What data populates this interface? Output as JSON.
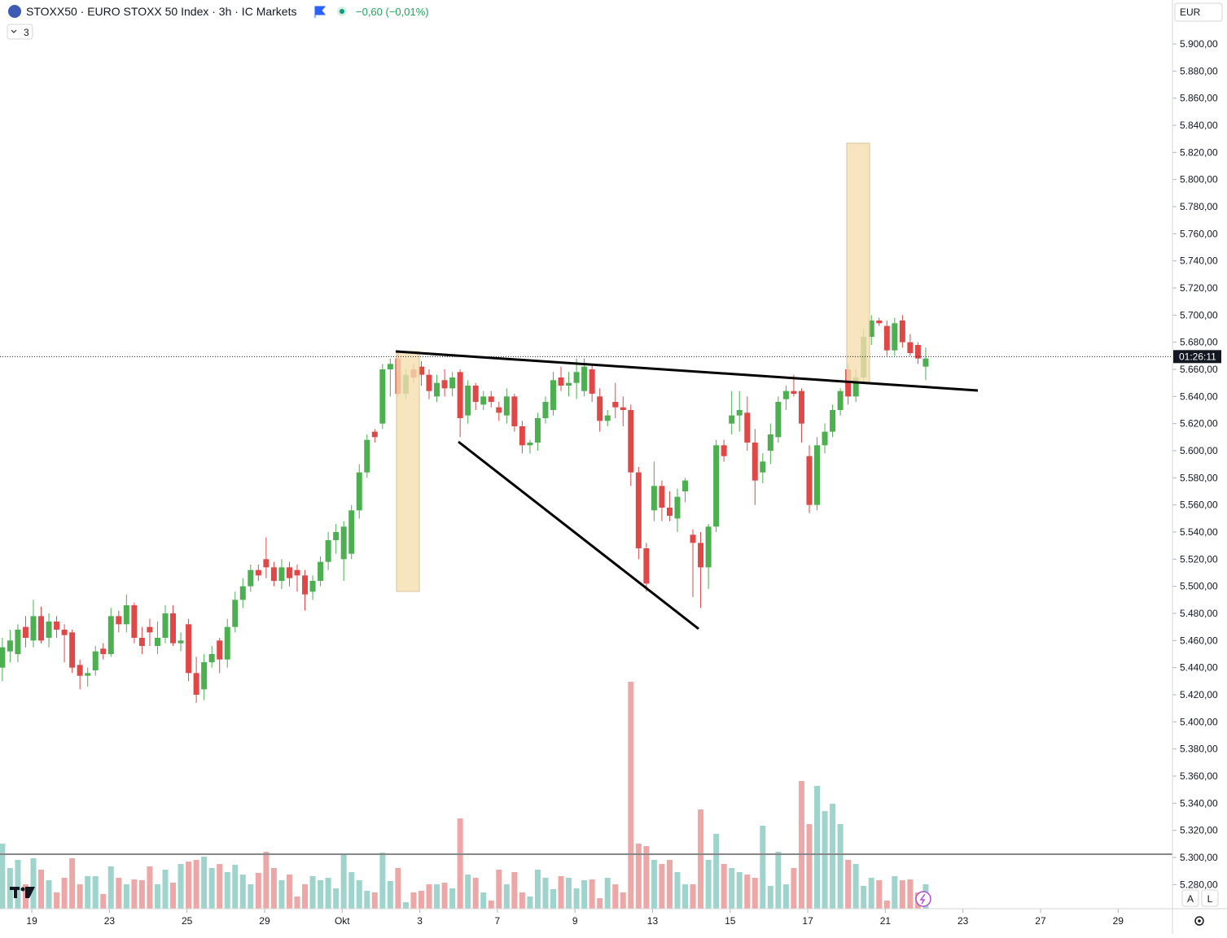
{
  "chart_data": {
    "type": "candlestick",
    "title": "STOXX50 · EURO STOXX 50 Index · 3h · IC Markets",
    "change": "−0,60 (−0,01%)",
    "indicator": "3",
    "currency": "EUR",
    "countdown": "01:26:11",
    "last_price": 5669.4,
    "up_color": "#4caf50",
    "down_color": "#e04848",
    "volume_up_color": "#9fd4cc",
    "volume_down_color": "#eea7a7",
    "open": [
      5440,
      5452,
      5450,
      5470,
      5460,
      5478,
      5462,
      5474,
      5468,
      5466,
      5442,
      5434,
      5438,
      5454,
      5450,
      5478,
      5472,
      5486,
      5462,
      5470,
      5456,
      5462,
      5480,
      5458,
      5472,
      5436,
      5424,
      5444,
      5460,
      5446,
      5470,
      5490,
      5500,
      5512,
      5520,
      5514,
      5504,
      5514,
      5512,
      5508,
      5496,
      5504,
      5518,
      5534,
      5520,
      5524,
      5556,
      5584,
      5614,
      5620,
      5660,
      5668,
      5642,
      5660,
      5662,
      5656,
      5640,
      5652,
      5646,
      5658,
      5626,
      5648,
      5634,
      5640,
      5632,
      5626,
      5640,
      5618,
      5604,
      5606,
      5624,
      5630,
      5654,
      5648,
      5650,
      5644,
      5660,
      5640,
      5622,
      5636,
      5632,
      5630,
      5584,
      5528,
      5556,
      5574,
      5558,
      5550,
      5570,
      5538,
      5532,
      5514,
      5544,
      5604,
      5620,
      5626,
      5628,
      5606,
      5584,
      5600,
      5610,
      5638,
      5644,
      5644,
      5596,
      5560,
      5604,
      5614,
      5630,
      5660,
      5640,
      5654,
      5684,
      5696,
      5692,
      5674,
      5696,
      5680,
      5678,
      5662
    ],
    "high": [
      5462,
      5468,
      5472,
      5478,
      5490,
      5485,
      5480,
      5478,
      5472,
      5468,
      5446,
      5440,
      5456,
      5458,
      5484,
      5482,
      5494,
      5488,
      5470,
      5476,
      5474,
      5486,
      5486,
      5466,
      5476,
      5448,
      5450,
      5456,
      5462,
      5476,
      5496,
      5506,
      5516,
      5516,
      5536,
      5518,
      5520,
      5518,
      5516,
      5512,
      5508,
      5522,
      5540,
      5546,
      5548,
      5560,
      5590,
      5612,
      5616,
      5664,
      5668,
      5672,
      5660,
      5664,
      5666,
      5660,
      5656,
      5660,
      5658,
      5660,
      5652,
      5650,
      5644,
      5644,
      5636,
      5646,
      5642,
      5622,
      5608,
      5628,
      5640,
      5658,
      5662,
      5658,
      5668,
      5668,
      5664,
      5646,
      5630,
      5650,
      5640,
      5634,
      5588,
      5532,
      5592,
      5578,
      5570,
      5572,
      5580,
      5542,
      5540,
      5546,
      5608,
      5608,
      5644,
      5644,
      5640,
      5616,
      5598,
      5620,
      5640,
      5648,
      5656,
      5646,
      5604,
      5610,
      5620,
      5634,
      5646,
      5664,
      5660,
      5690,
      5700,
      5698,
      5696,
      5698,
      5700,
      5686,
      5680,
      5676
    ],
    "low": [
      5430,
      5444,
      5444,
      5455,
      5455,
      5458,
      5455,
      5462,
      5444,
      5436,
      5424,
      5426,
      5434,
      5446,
      5448,
      5466,
      5466,
      5458,
      5450,
      5456,
      5450,
      5458,
      5456,
      5452,
      5430,
      5414,
      5416,
      5440,
      5436,
      5440,
      5466,
      5484,
      5496,
      5504,
      5506,
      5500,
      5498,
      5500,
      5496,
      5482,
      5490,
      5500,
      5512,
      5524,
      5504,
      5520,
      5550,
      5580,
      5606,
      5616,
      5640,
      5640,
      5638,
      5650,
      5648,
      5638,
      5636,
      5640,
      5640,
      5610,
      5620,
      5630,
      5630,
      5632,
      5622,
      5620,
      5614,
      5598,
      5598,
      5600,
      5620,
      5626,
      5644,
      5640,
      5638,
      5640,
      5636,
      5614,
      5618,
      5624,
      5618,
      5574,
      5520,
      5496,
      5548,
      5548,
      5548,
      5540,
      5562,
      5492,
      5484,
      5498,
      5540,
      5592,
      5612,
      5614,
      5600,
      5560,
      5576,
      5590,
      5606,
      5630,
      5640,
      5606,
      5554,
      5556,
      5598,
      5610,
      5626,
      5634,
      5636,
      5650,
      5678,
      5692,
      5670,
      5670,
      5676,
      5670,
      5664,
      5652
    ],
    "close": [
      5455,
      5460,
      5468,
      5462,
      5478,
      5460,
      5474,
      5468,
      5464,
      5440,
      5434,
      5436,
      5452,
      5450,
      5478,
      5472,
      5486,
      5462,
      5456,
      5466,
      5462,
      5480,
      5458,
      5460,
      5436,
      5420,
      5444,
      5450,
      5446,
      5470,
      5490,
      5500,
      5512,
      5508,
      5514,
      5504,
      5514,
      5506,
      5508,
      5494,
      5504,
      5518,
      5534,
      5540,
      5544,
      5556,
      5584,
      5608,
      5610,
      5660,
      5664,
      5642,
      5656,
      5654,
      5656,
      5644,
      5650,
      5646,
      5654,
      5624,
      5648,
      5636,
      5640,
      5636,
      5628,
      5640,
      5618,
      5604,
      5606,
      5624,
      5636,
      5652,
      5648,
      5650,
      5658,
      5662,
      5642,
      5622,
      5626,
      5632,
      5630,
      5584,
      5528,
      5502,
      5574,
      5558,
      5552,
      5566,
      5578,
      5532,
      5514,
      5544,
      5604,
      5596,
      5626,
      5630,
      5606,
      5578,
      5592,
      5612,
      5636,
      5644,
      5642,
      5620,
      5560,
      5604,
      5614,
      5630,
      5644,
      5640,
      5654,
      5684,
      5696,
      5694,
      5674,
      5694,
      5680,
      5672,
      5668,
      5668
    ],
    "volume": [
      80,
      50,
      60,
      30,
      62,
      48,
      35,
      20,
      38,
      62,
      30,
      40,
      40,
      18,
      52,
      38,
      30,
      36,
      35,
      52,
      30,
      48,
      32,
      55,
      58,
      60,
      64,
      50,
      55,
      45,
      54,
      42,
      30,
      44,
      70,
      50,
      35,
      42,
      15,
      30,
      40,
      35,
      38,
      25,
      67,
      45,
      35,
      22,
      20,
      69,
      34,
      50,
      8,
      20,
      22,
      30,
      30,
      32,
      25,
      111,
      42,
      38,
      20,
      10,
      48,
      30,
      45,
      20,
      15,
      48,
      38,
      24,
      40,
      38,
      25,
      35,
      36,
      13,
      38,
      30,
      20,
      279,
      80,
      77,
      60,
      55,
      60,
      45,
      30,
      30,
      122,
      60,
      92,
      55,
      50,
      45,
      42,
      38,
      102,
      28,
      70,
      30,
      50,
      157,
      104,
      151,
      120,
      129,
      104,
      60,
      55,
      28,
      38,
      35,
      10,
      40,
      35,
      36,
      20,
      30
    ],
    "xlim": [
      -0.3,
      150.8
    ],
    "xticks": [
      {
        "value": 3.8,
        "label": "19"
      },
      {
        "value": 13.8,
        "label": "23"
      },
      {
        "value": 23.8,
        "label": "25"
      },
      {
        "value": 33.8,
        "label": "29"
      },
      {
        "value": 43.8,
        "label": "Okt"
      },
      {
        "value": 53.8,
        "label": "3"
      },
      {
        "value": 63.8,
        "label": "7"
      },
      {
        "value": 73.8,
        "label": "9"
      },
      {
        "value": 83.8,
        "label": "13"
      },
      {
        "value": 93.8,
        "label": "15"
      },
      {
        "value": 103.8,
        "label": "17"
      },
      {
        "value": 113.8,
        "label": "21"
      },
      {
        "value": 123.8,
        "label": "23"
      },
      {
        "value": 133.8,
        "label": "27"
      },
      {
        "value": 143.8,
        "label": "29"
      }
    ],
    "ylim": [
      5262.2,
      5932.4
    ],
    "yticks": [
      {
        "value": 5280,
        "label": "5.280,00"
      },
      {
        "value": 5300,
        "label": "5.300,00"
      },
      {
        "value": 5320,
        "label": "5.320,00"
      },
      {
        "value": 5340,
        "label": "5.340,00"
      },
      {
        "value": 5360,
        "label": "5.360,00"
      },
      {
        "value": 5380,
        "label": "5.380,00"
      },
      {
        "value": 5400,
        "label": "5.400,00"
      },
      {
        "value": 5420,
        "label": "5.420,00"
      },
      {
        "value": 5440,
        "label": "5.440,00"
      },
      {
        "value": 5460,
        "label": "5.460,00"
      },
      {
        "value": 5480,
        "label": "5.480,00"
      },
      {
        "value": 5500,
        "label": "5.500,00"
      },
      {
        "value": 5520,
        "label": "5.520,00"
      },
      {
        "value": 5540,
        "label": "5.540,00"
      },
      {
        "value": 5560,
        "label": "5.560,00"
      },
      {
        "value": 5580,
        "label": "5.580,00"
      },
      {
        "value": 5600,
        "label": "5.600,00"
      },
      {
        "value": 5620,
        "label": "5.620,00"
      },
      {
        "value": 5640,
        "label": "5.640,00"
      },
      {
        "value": 5660,
        "label": "5.660,00"
      },
      {
        "value": 5680,
        "label": "5.680,00"
      },
      {
        "value": 5700,
        "label": "5.700,00"
      },
      {
        "value": 5720,
        "label": "5.720,00"
      },
      {
        "value": 5740,
        "label": "5.740,00"
      },
      {
        "value": 5760,
        "label": "5.760,00"
      },
      {
        "value": 5780,
        "label": "5.780,00"
      },
      {
        "value": 5800,
        "label": "5.800,00"
      },
      {
        "value": 5820,
        "label": "5.820,00"
      },
      {
        "value": 5840,
        "label": "5.840,00"
      },
      {
        "value": 5860,
        "label": "5.860,00"
      },
      {
        "value": 5880,
        "label": "5.880,00"
      },
      {
        "value": 5900,
        "label": "5.900,00"
      }
    ],
    "grid": false,
    "buttons": [
      "A",
      "L"
    ]
  }
}
